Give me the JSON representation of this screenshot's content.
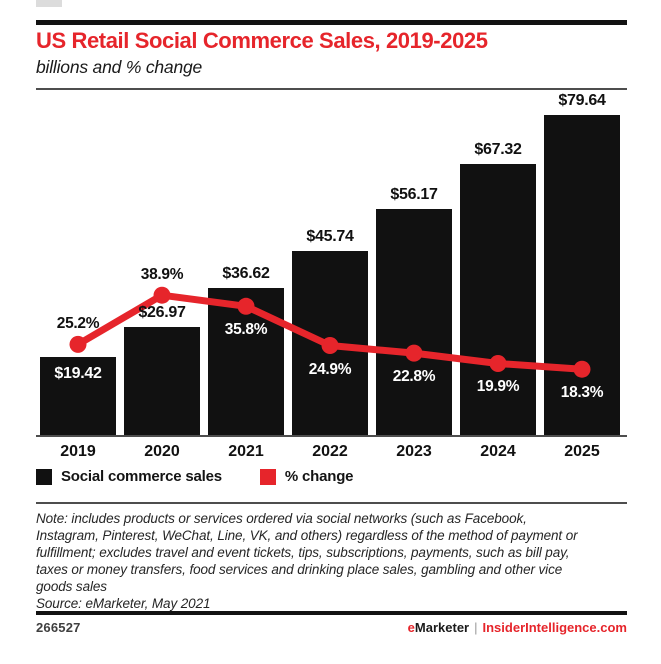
{
  "header": {
    "title": "US Retail Social Commerce Sales, 2019-2025",
    "subtitle": "billions and % change"
  },
  "chart_data": {
    "type": "bar",
    "categories": [
      "2019",
      "2020",
      "2021",
      "2022",
      "2023",
      "2024",
      "2025"
    ],
    "series": [
      {
        "name": "Social commerce sales",
        "type": "bar",
        "unit": "billions USD",
        "values": [
          19.42,
          26.97,
          36.62,
          45.74,
          56.17,
          67.32,
          79.64
        ],
        "labels": [
          "$19.42",
          "$26.97",
          "$36.62",
          "$45.74",
          "$56.17",
          "$67.32",
          "$79.64"
        ],
        "label_placement": [
          "inside",
          "above",
          "above",
          "above",
          "above",
          "above",
          "above"
        ],
        "color": "#111111"
      },
      {
        "name": "% change",
        "type": "line",
        "unit": "percent",
        "values": [
          25.2,
          38.9,
          35.8,
          24.9,
          22.8,
          19.9,
          18.3
        ],
        "labels": [
          "25.2%",
          "38.9%",
          "35.8%",
          "24.9%",
          "22.8%",
          "19.9%",
          "18.3%"
        ],
        "label_placement": [
          "above",
          "above",
          "below",
          "below",
          "below",
          "below",
          "below"
        ],
        "color": "#e6252b"
      }
    ],
    "title": "US Retail Social Commerce Sales, 2019-2025",
    "subtitle": "billions and % change",
    "xlabel": "",
    "ylabel": "",
    "ylim": [
      0,
      84.6
    ],
    "y2lim": [
      0,
      94.6
    ],
    "grid": false,
    "legend_position": "bottom"
  },
  "legend": {
    "items": [
      {
        "label": "Social commerce sales",
        "color": "#111111",
        "icon": "black-square-swatch"
      },
      {
        "label": "% change",
        "color": "#e6252b",
        "icon": "red-square-swatch"
      }
    ]
  },
  "note": {
    "lines": [
      "Note: includes products or services ordered via social networks (such as Facebook,",
      "Instagram, Pinterest, WeChat, Line, VK, and others) regardless of the method of payment or",
      "fulfillment; excludes travel and event tickets, tips, subscriptions, payments, such as bill pay,",
      "taxes or money transfers, food services and drinking place sales, gambling and other vice",
      "goods sales"
    ],
    "source": "Source: eMarketer, May 2021"
  },
  "footer": {
    "chart_id": "266527",
    "brand_prefix": "e",
    "brand_suffix": "Marketer",
    "separator": "|",
    "site": "InsiderIntelligence.com"
  },
  "colors": {
    "accent_red": "#e6252b",
    "bar_black": "#111111",
    "text_dark": "#1a1a1a",
    "rule_gray": "#4d4d4d"
  }
}
